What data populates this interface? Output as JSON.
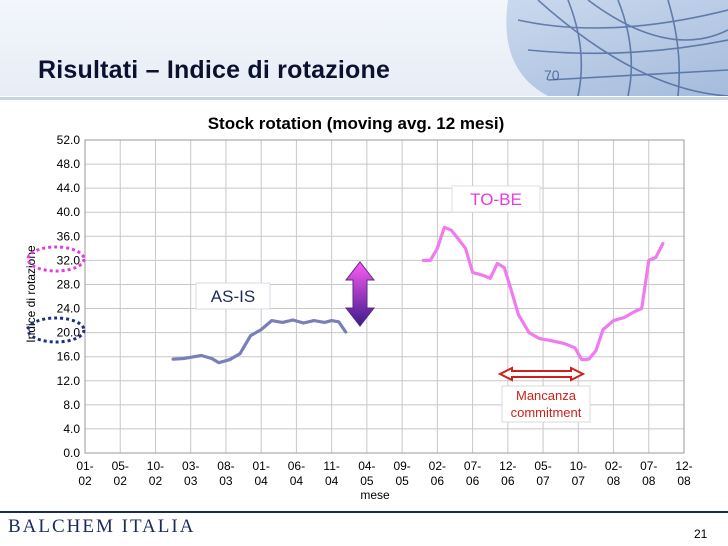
{
  "slide": {
    "title": "Risultati – Indice di rotazione",
    "logo": "BALCHEM ITALIA",
    "page_number": "21"
  },
  "chart_data": {
    "type": "line",
    "title": "Stock rotation (moving avg. 12 mesi)",
    "xlabel": "mese",
    "ylabel": "Indice di rotazione",
    "ylim": [
      0,
      52
    ],
    "yticks": [
      "0.0",
      "4.0",
      "8.0",
      "12.0",
      "16.0",
      "20.0",
      "24.0",
      "28.0",
      "32.0",
      "36.0",
      "40.0",
      "44.0",
      "48.0",
      "52.0"
    ],
    "xticks": [
      "01-02",
      "05-02",
      "10-02",
      "03-03",
      "08-03",
      "01-04",
      "06-04",
      "11-04",
      "04-05",
      "09-05",
      "02-06",
      "07-06",
      "12-06",
      "05-07",
      "10-07",
      "02-08",
      "07-08",
      "12-08"
    ],
    "grid": true,
    "series": [
      {
        "name": "AS-IS",
        "color": "#7b7fb8",
        "values": [
          [
            2.5,
            15.6
          ],
          [
            2.8,
            15.7
          ],
          [
            3.0,
            15.9
          ],
          [
            3.3,
            16.2
          ],
          [
            3.6,
            15.7
          ],
          [
            3.8,
            15.0
          ],
          [
            4.1,
            15.5
          ],
          [
            4.4,
            16.5
          ],
          [
            4.7,
            19.5
          ],
          [
            5.0,
            20.5
          ],
          [
            5.3,
            22.0
          ],
          [
            5.6,
            21.7
          ],
          [
            5.9,
            22.1
          ],
          [
            6.2,
            21.6
          ],
          [
            6.5,
            22.0
          ],
          [
            6.8,
            21.7
          ],
          [
            7.0,
            22.0
          ],
          [
            7.2,
            21.8
          ],
          [
            7.4,
            20.1
          ]
        ]
      },
      {
        "name": "TO-BE",
        "color": "#f07af0",
        "values": [
          [
            9.6,
            32.0
          ],
          [
            9.8,
            32.0
          ],
          [
            10.0,
            34.0
          ],
          [
            10.2,
            37.5
          ],
          [
            10.4,
            37.0
          ],
          [
            10.6,
            35.5
          ],
          [
            10.8,
            34.0
          ],
          [
            11.0,
            30.0
          ],
          [
            11.3,
            29.5
          ],
          [
            11.5,
            29.0
          ],
          [
            11.7,
            31.5
          ],
          [
            11.9,
            30.8
          ],
          [
            12.1,
            27.0
          ],
          [
            12.3,
            23.0
          ],
          [
            12.6,
            20.0
          ],
          [
            12.9,
            19.0
          ],
          [
            13.2,
            18.7
          ],
          [
            13.6,
            18.2
          ],
          [
            13.9,
            17.5
          ],
          [
            14.1,
            15.5
          ],
          [
            14.3,
            15.6
          ],
          [
            14.5,
            17.0
          ],
          [
            14.7,
            20.5
          ],
          [
            15.0,
            22.0
          ],
          [
            15.3,
            22.5
          ],
          [
            15.6,
            23.5
          ],
          [
            15.8,
            24.0
          ],
          [
            16.0,
            32.0
          ],
          [
            16.2,
            32.5
          ],
          [
            16.4,
            34.8
          ]
        ]
      }
    ],
    "annotations": {
      "as_is": "AS-IS",
      "to_be": "TO-BE",
      "gap_line1": "Mancanza",
      "gap_line2": "commitment"
    }
  }
}
